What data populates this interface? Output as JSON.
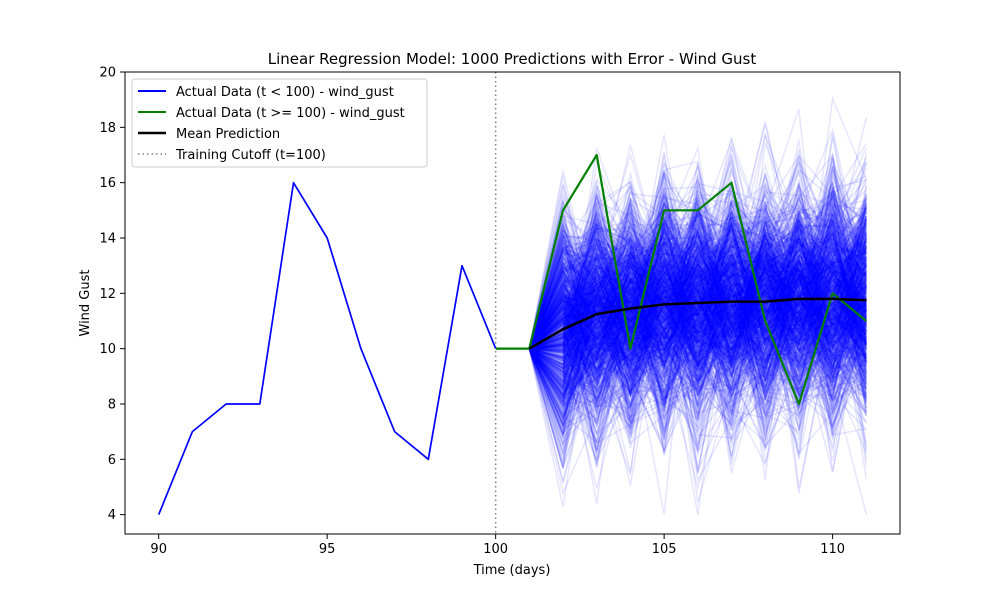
{
  "chart_data": {
    "type": "line",
    "title": "Linear Regression Model: 1000 Predictions with Error - Wind Gust",
    "xlabel": "Time (days)",
    "ylabel": "Wind Gust",
    "xlim": [
      89,
      112
    ],
    "ylim": [
      3.3,
      20
    ],
    "xticks": [
      90,
      95,
      100,
      105,
      110
    ],
    "yticks": [
      4,
      6,
      8,
      10,
      12,
      14,
      16,
      18,
      20
    ],
    "grid": false,
    "legend_position": "top-left",
    "series": [
      {
        "name": "Actual Data (t < 100) - wind_gust",
        "color": "#0000ff",
        "x": [
          90,
          91,
          92,
          93,
          94,
          95,
          96,
          97,
          98,
          99,
          100
        ],
        "y": [
          4,
          7,
          8,
          8,
          16,
          14,
          10,
          7,
          6,
          13,
          10
        ]
      },
      {
        "name": "Actual Data (t >= 100) - wind_gust",
        "color": "#008000",
        "x": [
          100,
          101,
          102,
          103,
          104,
          105,
          106,
          107,
          108,
          109,
          110,
          111
        ],
        "y": [
          10,
          10,
          15,
          17,
          10,
          15,
          15,
          16,
          11,
          8,
          12,
          11
        ]
      },
      {
        "name": "Mean Prediction",
        "color": "#000000",
        "x": [
          101,
          102,
          103,
          104,
          105,
          106,
          107,
          108,
          109,
          110,
          111
        ],
        "y": [
          10,
          10.7,
          11.25,
          11.45,
          11.6,
          11.65,
          11.7,
          11.7,
          11.8,
          11.8,
          11.75
        ]
      }
    ],
    "cutoff": {
      "label": "Training Cutoff (t=100)",
      "x": 100,
      "color": "#808080"
    },
    "prediction_paths": {
      "count": 1000,
      "color": "#0000ff",
      "start": {
        "x": 101,
        "y": 10
      },
      "x": [
        101,
        102,
        103,
        104,
        105,
        106,
        107,
        108,
        109,
        110,
        111
      ],
      "mean": [
        10,
        10.7,
        11.25,
        11.45,
        11.6,
        11.65,
        11.7,
        11.7,
        11.8,
        11.8,
        11.75
      ],
      "spread": 2.0,
      "range": [
        4.0,
        19.4
      ]
    }
  }
}
